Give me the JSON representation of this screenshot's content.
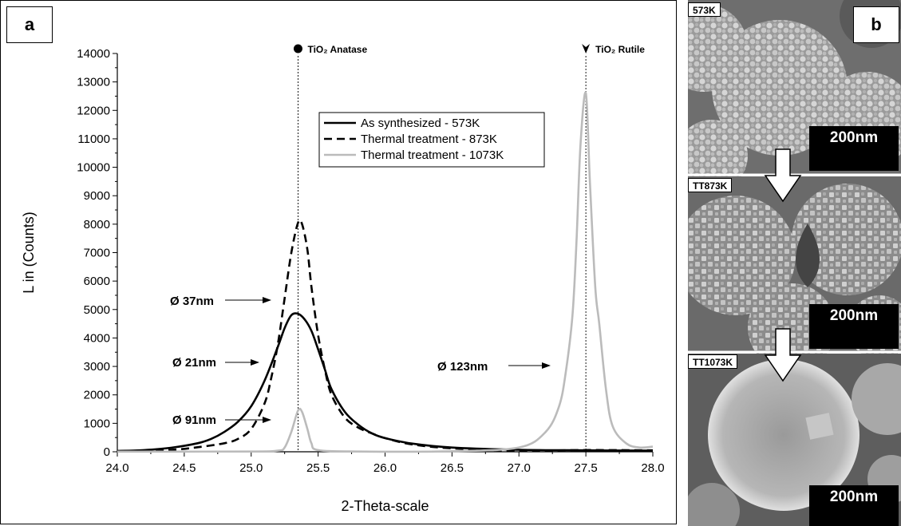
{
  "panel_a": {
    "label": "a",
    "chart_data": {
      "type": "line",
      "xlabel": "2-Theta-scale",
      "ylabel": "L in (Counts)",
      "xlim": [
        24.0,
        28.0
      ],
      "ylim": [
        0,
        14000
      ],
      "x_ticks": [
        "24.0",
        "24.5",
        "25.0",
        "25.5",
        "26.0",
        "26.5",
        "27.0",
        "27.5",
        "28.0"
      ],
      "y_ticks": [
        "0",
        "1000",
        "2000",
        "3000",
        "4000",
        "5000",
        "6000",
        "7000",
        "8000",
        "9000",
        "10000",
        "11000",
        "12000",
        "13000",
        "14000"
      ],
      "grid": false,
      "legend_position": "top-center",
      "series": [
        {
          "name": "As synthesized - 573K",
          "style": "solid",
          "color": "#000000",
          "points": [
            [
              24.0,
              30
            ],
            [
              24.2,
              60
            ],
            [
              24.4,
              140
            ],
            [
              24.6,
              300
            ],
            [
              24.7,
              450
            ],
            [
              24.8,
              700
            ],
            [
              24.9,
              1050
            ],
            [
              25.0,
              1600
            ],
            [
              25.1,
              2500
            ],
            [
              25.2,
              3700
            ],
            [
              25.25,
              4350
            ],
            [
              25.3,
              4800
            ],
            [
              25.35,
              4850
            ],
            [
              25.4,
              4650
            ],
            [
              25.45,
              4250
            ],
            [
              25.5,
              3600
            ],
            [
              25.55,
              2900
            ],
            [
              25.6,
              2200
            ],
            [
              25.7,
              1400
            ],
            [
              25.8,
              950
            ],
            [
              25.9,
              650
            ],
            [
              26.0,
              480
            ],
            [
              26.2,
              290
            ],
            [
              26.5,
              150
            ],
            [
              27.0,
              70
            ],
            [
              27.5,
              50
            ],
            [
              28.0,
              40
            ]
          ]
        },
        {
          "name": "Thermal treatment - 873K",
          "style": "dashed",
          "color": "#000000",
          "points": [
            [
              24.0,
              20
            ],
            [
              24.4,
              70
            ],
            [
              24.6,
              160
            ],
            [
              24.8,
              300
            ],
            [
              24.9,
              450
            ],
            [
              25.0,
              800
            ],
            [
              25.1,
              1700
            ],
            [
              25.15,
              2600
            ],
            [
              25.2,
              3800
            ],
            [
              25.25,
              5400
            ],
            [
              25.3,
              7000
            ],
            [
              25.35,
              8050
            ],
            [
              25.38,
              8000
            ],
            [
              25.42,
              7100
            ],
            [
              25.45,
              5800
            ],
            [
              25.5,
              4100
            ],
            [
              25.55,
              2900
            ],
            [
              25.6,
              2000
            ],
            [
              25.7,
              1200
            ],
            [
              25.8,
              850
            ],
            [
              25.9,
              650
            ],
            [
              26.0,
              480
            ],
            [
              26.2,
              260
            ],
            [
              26.5,
              120
            ],
            [
              27.0,
              40
            ],
            [
              27.5,
              60
            ],
            [
              28.0,
              50
            ]
          ]
        },
        {
          "name": "Thermal treatment - 1073K",
          "style": "solid",
          "color": "#bbbbbb",
          "points": [
            [
              24.0,
              5
            ],
            [
              25.0,
              10
            ],
            [
              25.2,
              40
            ],
            [
              25.25,
              150
            ],
            [
              25.3,
              700
            ],
            [
              25.35,
              1450
            ],
            [
              25.38,
              1400
            ],
            [
              25.42,
              800
            ],
            [
              25.45,
              300
            ],
            [
              25.5,
              60
            ],
            [
              25.8,
              10
            ],
            [
              26.5,
              20
            ],
            [
              27.0,
              150
            ],
            [
              27.2,
              700
            ],
            [
              27.3,
              1600
            ],
            [
              27.35,
              2800
            ],
            [
              27.4,
              4800
            ],
            [
              27.43,
              7400
            ],
            [
              27.46,
              10800
            ],
            [
              27.5,
              12600
            ],
            [
              27.53,
              9500
            ],
            [
              27.57,
              5800
            ],
            [
              27.6,
              4500
            ],
            [
              27.65,
              2200
            ],
            [
              27.7,
              900
            ],
            [
              27.8,
              300
            ],
            [
              27.9,
              150
            ],
            [
              28.0,
              180
            ]
          ]
        }
      ],
      "reference_lines": [
        {
          "x": 25.35,
          "label": "TiO₂ Anatase",
          "marker": "circle"
        },
        {
          "x": 27.5,
          "label": "TiO₂ Rutile",
          "marker": "arrowhead"
        }
      ],
      "annotations": [
        {
          "text": "Ø 37nm",
          "x": 25.15,
          "y": 5300
        },
        {
          "text": "Ø 21nm",
          "x": 25.05,
          "y": 3150
        },
        {
          "text": "Ø 91nm",
          "x": 25.25,
          "y": 1100
        },
        {
          "text": "Ø 123nm",
          "x": 27.3,
          "y": 3100
        }
      ]
    }
  },
  "panel_b": {
    "label": "b",
    "images": [
      {
        "label": "573K",
        "scale": "200nm"
      },
      {
        "label": "TT873K",
        "scale": "200nm"
      },
      {
        "label": "TT1073K",
        "scale": "200nm"
      }
    ],
    "colors": {
      "arrow_fill": "#ffffff",
      "scale_box": "#000000",
      "sem_base": "#8a8a8a"
    }
  }
}
